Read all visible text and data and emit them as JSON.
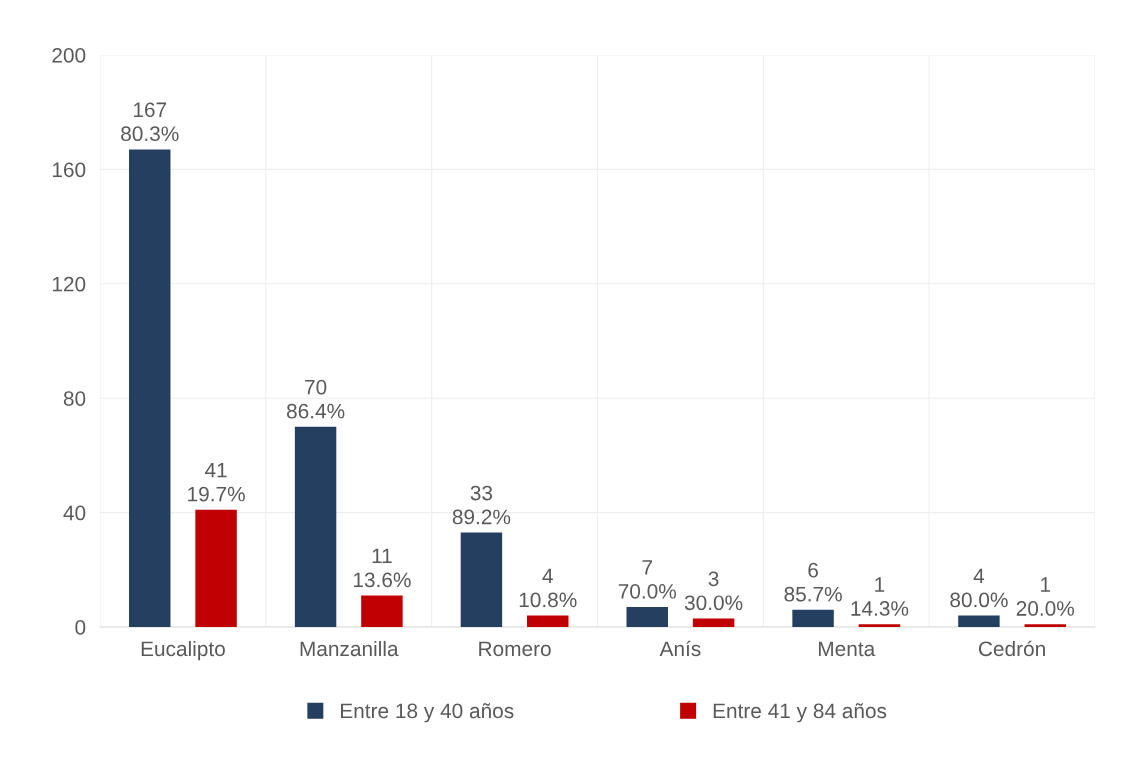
{
  "chart_data": {
    "type": "bar",
    "categories": [
      "Eucalipto",
      "Manzanilla",
      "Romero",
      "Anís",
      "Menta",
      "Cedrón"
    ],
    "series": [
      {
        "name": "Entre 18 y 40 años",
        "color": "#243f60",
        "values": [
          167,
          70,
          33,
          7,
          6,
          4
        ],
        "value_labels": [
          "167\n80.3%",
          "70\n86.4%",
          "33\n89.2%",
          "7\n70.0%",
          "6\n85.7%",
          "4\n80.0%"
        ]
      },
      {
        "name": "Entre 41 y 84 años",
        "color": "#c00000",
        "values": [
          41,
          11,
          4,
          3,
          1,
          1
        ],
        "value_labels": [
          "41\n19.7%",
          "11\n13.6%",
          "4\n10.8%",
          "3\n30.0%",
          "1\n14.3%",
          "1\n20.0%"
        ]
      }
    ],
    "ylim": [
      0,
      200
    ],
    "yticks": [
      0,
      40,
      80,
      120,
      160,
      200
    ],
    "grid": true,
    "legend": "bottom"
  }
}
